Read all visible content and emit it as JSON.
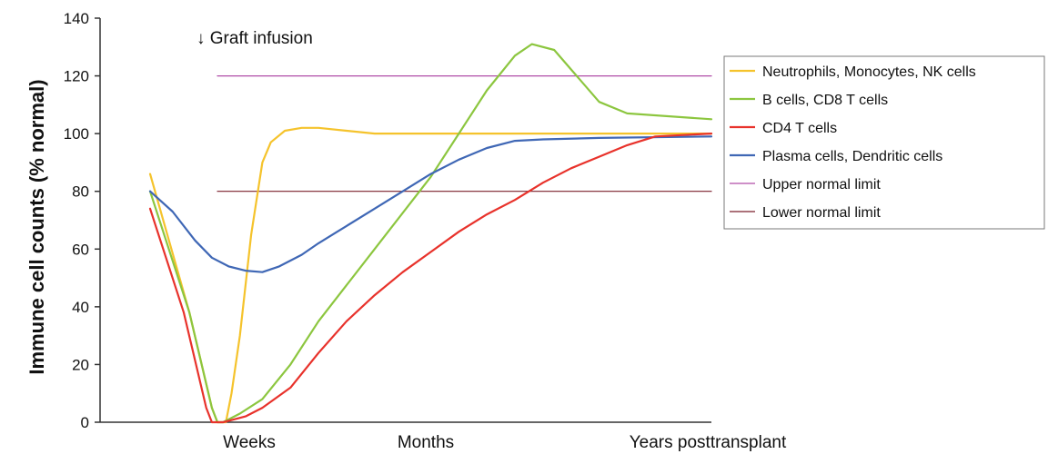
{
  "chart_data": {
    "type": "line",
    "ylabel": "Immune cell counts (% normal)",
    "xlabel": "",
    "ylim": [
      0,
      140
    ],
    "yticks": [
      0,
      20,
      40,
      60,
      80,
      100,
      120,
      140
    ],
    "x_tick_labels": [
      "Weeks",
      "Months",
      "Years posttransplant"
    ],
    "annotation": "↓ Graft infusion",
    "grid": false,
    "legend_position": "right",
    "series": [
      {
        "name": "Neutrophils, Monocytes, NK cells",
        "color": "#f5c32c",
        "points": [
          [
            0.0,
            86
          ],
          [
            0.07,
            38
          ],
          [
            0.11,
            5
          ],
          [
            0.12,
            0
          ],
          [
            0.135,
            0
          ],
          [
            0.145,
            10
          ],
          [
            0.16,
            30
          ],
          [
            0.18,
            65
          ],
          [
            0.2,
            90
          ],
          [
            0.215,
            97
          ],
          [
            0.24,
            101
          ],
          [
            0.27,
            102
          ],
          [
            0.3,
            102
          ],
          [
            0.35,
            101
          ],
          [
            0.4,
            100
          ],
          [
            0.6,
            100
          ],
          [
            1.0,
            100
          ]
        ]
      },
      {
        "name": "B cells, CD8 T cells",
        "color": "#8cc63f",
        "points": [
          [
            0.0,
            80
          ],
          [
            0.07,
            38
          ],
          [
            0.11,
            5
          ],
          [
            0.12,
            0
          ],
          [
            0.13,
            0
          ],
          [
            0.16,
            3
          ],
          [
            0.2,
            8
          ],
          [
            0.25,
            20
          ],
          [
            0.3,
            35
          ],
          [
            0.4,
            60
          ],
          [
            0.5,
            85
          ],
          [
            0.55,
            100
          ],
          [
            0.6,
            115
          ],
          [
            0.65,
            127
          ],
          [
            0.68,
            131
          ],
          [
            0.72,
            129
          ],
          [
            0.76,
            120
          ],
          [
            0.8,
            111
          ],
          [
            0.85,
            107
          ],
          [
            1.0,
            105
          ]
        ]
      },
      {
        "name": "CD4 T cells",
        "color": "#e8322b",
        "points": [
          [
            0.0,
            74
          ],
          [
            0.06,
            38
          ],
          [
            0.1,
            5
          ],
          [
            0.11,
            0
          ],
          [
            0.13,
            0
          ],
          [
            0.17,
            2
          ],
          [
            0.2,
            5
          ],
          [
            0.25,
            12
          ],
          [
            0.3,
            24
          ],
          [
            0.35,
            35
          ],
          [
            0.4,
            44
          ],
          [
            0.45,
            52
          ],
          [
            0.5,
            59
          ],
          [
            0.55,
            66
          ],
          [
            0.6,
            72
          ],
          [
            0.65,
            77
          ],
          [
            0.7,
            83
          ],
          [
            0.75,
            88
          ],
          [
            0.8,
            92
          ],
          [
            0.85,
            96
          ],
          [
            0.9,
            99
          ],
          [
            1.0,
            100
          ]
        ]
      },
      {
        "name": "Plasma cells, Dendritic cells",
        "color": "#3f67b5",
        "points": [
          [
            0.0,
            80
          ],
          [
            0.04,
            73
          ],
          [
            0.08,
            63
          ],
          [
            0.11,
            57
          ],
          [
            0.14,
            54
          ],
          [
            0.17,
            52.5
          ],
          [
            0.2,
            52
          ],
          [
            0.23,
            54
          ],
          [
            0.27,
            58
          ],
          [
            0.3,
            62
          ],
          [
            0.35,
            68
          ],
          [
            0.4,
            74
          ],
          [
            0.45,
            80
          ],
          [
            0.5,
            86
          ],
          [
            0.55,
            91
          ],
          [
            0.6,
            95
          ],
          [
            0.65,
            97.5
          ],
          [
            0.7,
            98
          ],
          [
            0.8,
            98.5
          ],
          [
            1.0,
            99
          ]
        ]
      },
      {
        "name": "Upper normal limit",
        "color": "#b04ca8",
        "points": [
          [
            0.12,
            120
          ],
          [
            1.0,
            120
          ]
        ]
      },
      {
        "name": "Lower normal limit",
        "color": "#7a1f2a",
        "points": [
          [
            0.12,
            80
          ],
          [
            1.0,
            80
          ]
        ]
      }
    ]
  }
}
